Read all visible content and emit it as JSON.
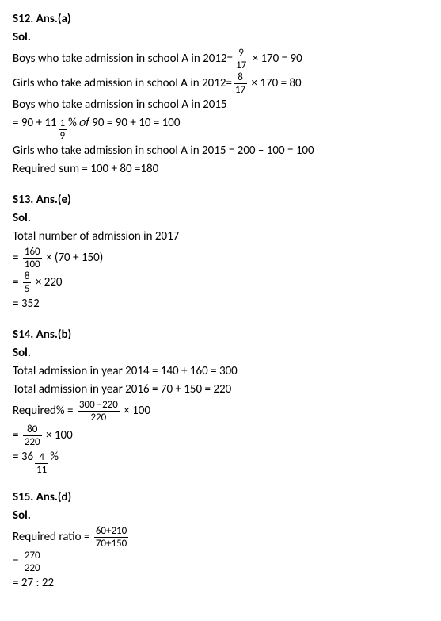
{
  "s12": {
    "header": "S12. Ans.(a)",
    "sol": "Sol.",
    "l1a": "Boys who take admission in school A in 2012=",
    "l1_num": "9",
    "l1_den": "17",
    "l1b": " × 170 = 90",
    "l2a": "Girls who take admission in school A in 2012=",
    "l2_num": "8",
    "l2_den": "17",
    "l2b": " × 170 = 80",
    "l3": "Boys who take admission in school A in 2015",
    "l4a": "= 90 + 11",
    "l4_num": "1",
    "l4_den": "9",
    "l4b": "% 𝑜𝑓 90 = 90 + 10 = 100",
    "l5": "Girls who take admission in school A in 2015 = 200 – 100 = 100",
    "l6": "Required sum = 100 + 80 =180"
  },
  "s13": {
    "header": "S13. Ans.(e)",
    "sol": "Sol.",
    "l1": "Total number of admission in 2017",
    "l2a": "= ",
    "l2_num": "160",
    "l2_den": "100",
    "l2b": " × (70 + 150)",
    "l3a": "= ",
    "l3_num": "8",
    "l3_den": "5",
    "l3b": " × 220",
    "l4": "= 352"
  },
  "s14": {
    "header": "S14. Ans.(b)",
    "sol": "Sol.",
    "l1": "Total admission in year 2014 = 140 + 160 = 300",
    "l2": "Total admission in year 2016 = 70 + 150 = 220",
    "l3a": "Required% = ",
    "l3_num": "300 −220",
    "l3_den": "220",
    "l3b": " × 100",
    "l4a": "= ",
    "l4_num": "80",
    "l4_den": "220",
    "l4b": " × 100",
    "l5a": "= 36",
    "l5_num": "4",
    "l5_den": "11",
    "l5b": "%"
  },
  "s15": {
    "header": "S15. Ans.(d)",
    "sol": "Sol.",
    "l1a": "Required ratio = ",
    "l1_num": "60+210",
    "l1_den": "70+150",
    "l2a": "= ",
    "l2_num": "270",
    "l2_den": "220",
    "l3": "= 27 : 22"
  }
}
